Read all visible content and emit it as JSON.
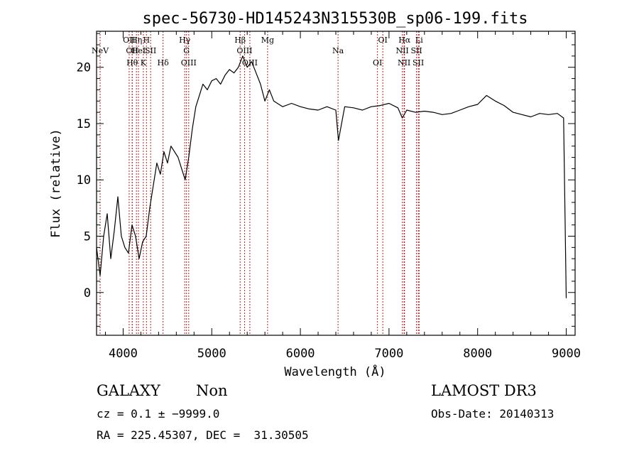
{
  "chart_data": {
    "type": "line",
    "title": "spec-56730-HD145243N315530B_sp06-199.fits",
    "xlabel": "Wavelength (Å)",
    "ylabel": "Flux (relative)",
    "xlim": [
      3700,
      9100
    ],
    "ylim": [
      -3.8,
      23.2
    ],
    "xticks": [
      4000,
      5000,
      6000,
      7000,
      8000,
      9000
    ],
    "yticks": [
      0,
      5,
      10,
      15,
      20
    ],
    "grid": false,
    "line_color": "#000000",
    "marker_color": "#b22222",
    "series": [
      {
        "x": [
          3700,
          3740,
          3780,
          3820,
          3860,
          3900,
          3940,
          3980,
          4020,
          4060,
          4100,
          4140,
          4180,
          4220,
          4260,
          4300,
          4340,
          4380,
          4420,
          4460,
          4500,
          4540,
          4580,
          4620,
          4660,
          4700,
          4740,
          4780,
          4820,
          4860,
          4900,
          4950,
          5000,
          5050,
          5100,
          5150,
          5200,
          5250,
          5300,
          5350,
          5400,
          5450,
          5500,
          5550,
          5600,
          5650,
          5700,
          5800,
          5900,
          6000,
          6100,
          6200,
          6300,
          6400,
          6430,
          6500,
          6600,
          6700,
          6800,
          6900,
          7000,
          7100,
          7150,
          7200,
          7300,
          7400,
          7500,
          7600,
          7700,
          7800,
          7900,
          8000,
          8100,
          8200,
          8300,
          8400,
          8500,
          8600,
          8700,
          8800,
          8900,
          8970,
          9000
        ],
        "y": [
          4.0,
          1.5,
          5.0,
          7.0,
          3.0,
          5.5,
          8.5,
          5.0,
          4.0,
          3.5,
          6.0,
          5.0,
          3.0,
          4.5,
          5.0,
          7.5,
          9.5,
          11.5,
          10.5,
          12.5,
          11.5,
          13.0,
          12.5,
          12.0,
          11.0,
          10.0,
          12.0,
          14.5,
          16.5,
          17.5,
          18.5,
          18.0,
          18.8,
          19.0,
          18.5,
          19.3,
          19.8,
          19.5,
          20.0,
          21.0,
          20.0,
          20.5,
          19.5,
          18.5,
          17.0,
          18.0,
          17.0,
          16.5,
          16.8,
          16.5,
          16.3,
          16.2,
          16.5,
          16.2,
          13.5,
          16.5,
          16.4,
          16.2,
          16.5,
          16.6,
          16.8,
          16.4,
          15.5,
          16.2,
          16.0,
          16.1,
          16.0,
          15.8,
          15.9,
          16.2,
          16.5,
          16.7,
          17.5,
          17.0,
          16.6,
          16.0,
          15.8,
          15.6,
          15.9,
          15.8,
          15.9,
          15.5,
          -0.5
        ]
      }
    ],
    "line_markers": [
      {
        "x": 4068,
        "label": "OII"
      },
      {
        "x": 4102,
        "label": "OII"
      },
      {
        "x": 4102,
        "label": "Hθ"
      },
      {
        "x": 4150,
        "label": "Hη"
      },
      {
        "x": 4173,
        "label": "HeI"
      },
      {
        "x": 4228,
        "label": "K"
      },
      {
        "x": 4263,
        "label": "H"
      },
      {
        "x": 4310,
        "label": "SII"
      },
      {
        "x": 4450,
        "label": "Hδ"
      },
      {
        "x": 4695,
        "label": "Hγ"
      },
      {
        "x": 4715,
        "label": "G"
      },
      {
        "x": 4740,
        "label": "OIII"
      },
      {
        "x": 5320,
        "label": "Hβ"
      },
      {
        "x": 5370,
        "label": "OIII"
      },
      {
        "x": 5430,
        "label": "OIII"
      },
      {
        "x": 5630,
        "label": "Mg"
      },
      {
        "x": 6425,
        "label": "Na"
      },
      {
        "x": 6870,
        "label": "OI"
      },
      {
        "x": 6930,
        "label": "OI"
      },
      {
        "x": 7150,
        "label": "NII"
      },
      {
        "x": 7170,
        "label": "NII"
      },
      {
        "x": 7175,
        "label": "Hα"
      },
      {
        "x": 7310,
        "label": "SII"
      },
      {
        "x": 7330,
        "label": "SII"
      },
      {
        "x": 7340,
        "label": "Li"
      },
      {
        "x": 3740,
        "label": "NeV"
      }
    ]
  },
  "info": {
    "class_label": "GALAXY",
    "subclass_label": "Non",
    "survey_label": "LAMOST DR3",
    "cz_line": "cz = 0.1 ± −9999.0",
    "obs_date": "Obs-Date: 20140313",
    "radec_line": "RA = 225.45307, DEC =  31.30505"
  }
}
